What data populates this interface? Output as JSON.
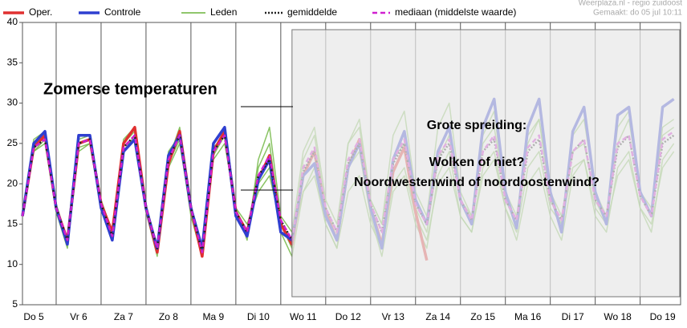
{
  "chart_data": {
    "type": "line",
    "source": "Weerplaza.nl - regio zuidoost",
    "created": "Gemaakt: do 05 jul 10:11",
    "annotations": [
      "Zomerse temperaturen",
      "Grote spreiding:",
      "Wolken of niet?",
      "Noordwestenwind of noordoostenwind?"
    ],
    "x": [
      0.25,
      0.5,
      0.75,
      1,
      1.25,
      1.5,
      1.75,
      2,
      2.25,
      2.5,
      2.75,
      3,
      3.25,
      3.5,
      3.75,
      4,
      4.25,
      4.5,
      4.75,
      5,
      5.25,
      5.5,
      5.75,
      6,
      6.25,
      6.5,
      6.75,
      7,
      7.25,
      7.5,
      7.75,
      8,
      8.25,
      8.5,
      8.75,
      9,
      9.25,
      9.5,
      9.75,
      10,
      10.25,
      10.5,
      10.75,
      11,
      11.25,
      11.5,
      11.75,
      12,
      12.25,
      12.5,
      12.75,
      13,
      13.25,
      13.5,
      13.75,
      14,
      14.25,
      14.5,
      14.75
    ],
    "xlim": [
      0.25,
      14.9
    ],
    "xticks": [
      {
        "value": 0.5,
        "label": "Do 5"
      },
      {
        "value": 1.5,
        "label": "Vr 6"
      },
      {
        "value": 2.5,
        "label": "Za 7"
      },
      {
        "value": 3.5,
        "label": "Zo 8"
      },
      {
        "value": 4.5,
        "label": "Ma 9"
      },
      {
        "value": 5.5,
        "label": "Di 10"
      },
      {
        "value": 6.5,
        "label": "Wo 11"
      },
      {
        "value": 7.5,
        "label": "Do 12"
      },
      {
        "value": 8.5,
        "label": "Vr 13"
      },
      {
        "value": 9.5,
        "label": "Za 14"
      },
      {
        "value": 10.5,
        "label": "Zo 15"
      },
      {
        "value": 11.5,
        "label": "Ma 16"
      },
      {
        "value": 12.5,
        "label": "Di 17"
      },
      {
        "value": 13.5,
        "label": "Wo 18"
      },
      {
        "value": 14.5,
        "label": "Do 19"
      }
    ],
    "ylim": [
      5,
      40
    ],
    "yticks": [
      5,
      10,
      15,
      20,
      25,
      30,
      35,
      40
    ],
    "shade_from": 6.25,
    "ensemble": {
      "name": "Leden",
      "color": "#6cb43c",
      "members": [
        [
          16,
          25,
          26,
          17,
          13,
          25.5,
          26,
          17,
          13,
          25,
          26.5,
          17.5,
          12,
          23,
          27,
          17.5,
          11,
          25,
          27,
          16,
          14,
          22,
          25,
          15,
          12,
          23,
          26,
          17,
          14,
          25,
          28,
          18,
          15,
          26,
          29,
          19,
          16,
          27,
          30,
          19,
          16,
          26,
          29,
          18,
          15,
          25,
          28,
          18,
          15,
          26,
          28,
          19,
          16,
          27,
          29,
          19,
          16,
          27,
          28
        ],
        [
          16,
          24,
          25,
          16.5,
          12.5,
          24,
          25,
          17,
          14,
          24,
          25.5,
          16.5,
          11,
          22,
          25,
          16.5,
          12,
          23,
          25,
          17,
          15,
          19,
          21,
          15,
          13,
          19,
          21,
          15,
          12,
          19,
          21,
          15,
          12,
          20,
          22,
          16,
          13,
          20,
          22,
          16,
          14,
          21,
          23,
          17,
          14,
          22,
          24,
          17,
          15,
          22,
          23,
          17,
          15,
          21,
          23,
          17,
          15,
          22,
          24
        ],
        [
          16,
          25.5,
          26.5,
          17.5,
          13,
          26,
          26,
          18,
          14,
          25.5,
          27,
          17,
          12,
          24,
          26,
          17,
          11.5,
          24.5,
          26,
          17,
          13,
          23,
          27,
          16,
          14,
          24,
          27,
          18,
          15,
          25,
          27,
          18,
          15,
          23,
          25,
          17,
          14,
          23,
          26,
          18,
          16,
          25,
          27,
          19,
          16,
          26,
          28,
          19,
          16,
          24,
          25,
          18,
          15,
          25,
          28,
          19,
          17,
          26,
          27
        ],
        [
          16,
          24,
          25.5,
          16.5,
          12,
          24.5,
          25,
          17,
          13,
          24,
          26,
          16.5,
          12,
          22.5,
          25.5,
          16,
          11,
          23.5,
          26,
          16,
          14,
          20,
          22,
          14,
          11,
          19,
          22,
          15,
          12,
          22,
          24,
          16,
          11,
          19,
          21,
          15,
          12,
          21,
          24,
          16,
          14,
          22,
          24,
          17,
          13,
          20,
          22,
          16,
          13,
          21,
          23,
          16,
          14,
          22,
          24,
          17,
          14,
          23,
          25
        ]
      ]
    },
    "series": [
      {
        "name": "Oper.",
        "color": "#e03030",
        "width": 3.5,
        "dash": "none",
        "values": [
          16,
          24.5,
          26,
          17,
          13,
          25,
          25.5,
          17.5,
          14,
          25,
          27,
          17,
          11.5,
          22.5,
          26.5,
          17,
          11,
          24,
          26.5,
          16.5,
          14,
          20.5,
          23.5,
          15,
          12.5,
          21,
          24,
          16.5,
          13,
          22,
          25.5,
          17,
          12.5,
          21.5,
          24.5,
          16.5,
          10.5,
          null,
          null,
          null,
          null,
          null,
          null,
          null,
          null,
          null,
          null,
          null,
          null,
          null,
          null,
          null,
          null,
          null,
          null,
          null,
          null,
          null,
          null
        ]
      },
      {
        "name": "Controle",
        "color": "#2f3fd0",
        "width": 3.5,
        "dash": "none",
        "values": [
          16,
          25,
          26.5,
          17,
          12.5,
          26,
          26,
          17,
          13,
          24,
          25.5,
          17,
          12,
          23.5,
          26,
          17,
          12,
          25,
          27,
          16,
          13.5,
          20.5,
          23,
          14,
          13,
          21,
          22.5,
          16,
          13,
          22,
          25,
          17,
          12,
          23,
          26.5,
          18,
          15,
          24,
          27,
          18,
          15,
          27,
          30.5,
          19,
          14.5,
          27,
          30.5,
          19,
          14,
          26.5,
          29.5,
          19,
          15,
          28.5,
          29.5,
          19,
          16,
          29.5,
          30.5
        ]
      },
      {
        "name": "gemiddelde",
        "color": "#222222",
        "width": 2.5,
        "dash": "2 2",
        "values": [
          16,
          24.5,
          25.5,
          17,
          13,
          25,
          25.5,
          17.5,
          13.5,
          24.5,
          26,
          17,
          12,
          23,
          26,
          17,
          11.5,
          24,
          26,
          16.5,
          14,
          21,
          23,
          15.5,
          13,
          21.5,
          24,
          17,
          14,
          22.5,
          25,
          17.5,
          14,
          22.5,
          25,
          17.5,
          15,
          23,
          25,
          18,
          15.5,
          24,
          25.5,
          18,
          15.5,
          24,
          25.5,
          18,
          15.5,
          24,
          25.5,
          18,
          16,
          24.5,
          26,
          18.5,
          16,
          25,
          26
        ]
      },
      {
        "name": "mediaan (middelste waarde)",
        "color": "#d020d0",
        "width": 2.5,
        "dash": "6 4",
        "values": [
          16,
          24.5,
          25.5,
          17,
          13,
          25,
          25.5,
          17.5,
          13.5,
          24.5,
          26,
          17,
          12,
          23,
          26,
          17,
          11.5,
          24,
          26,
          16.5,
          14,
          21,
          23.5,
          15.5,
          13,
          22,
          24.5,
          17,
          14,
          23,
          25.5,
          17.5,
          14,
          23,
          25.5,
          17.5,
          15,
          23.5,
          25.5,
          18,
          15.5,
          24,
          26,
          18,
          15.5,
          24.5,
          26,
          18,
          15.5,
          24,
          25.5,
          18,
          16,
          25,
          26,
          18.5,
          16,
          25.5,
          26.5
        ]
      }
    ]
  }
}
